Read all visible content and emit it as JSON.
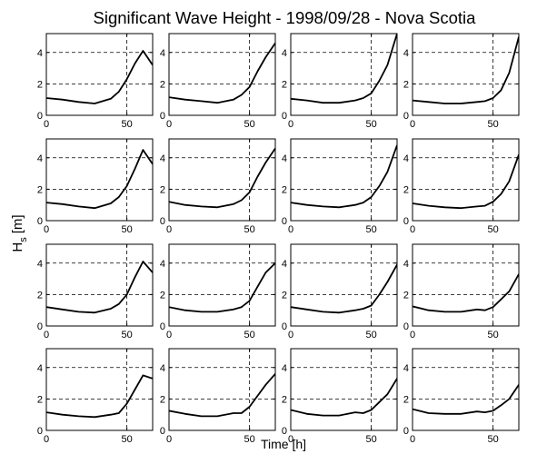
{
  "chart_data": {
    "type": "line",
    "title": "Significant Wave Height - 1998/09/28 - Nova Scotia",
    "xlabel": "Time [h]",
    "ylabel": "H",
    "ylabel_subscript": "s",
    "ylabel_unit": "[m]",
    "layout": "4x4 grid of small multiples",
    "xlim": [
      0,
      66
    ],
    "ylim": [
      0,
      5.2
    ],
    "xticks": [
      0,
      50
    ],
    "yticks": [
      0,
      2,
      4
    ],
    "grid": "dashed",
    "panels": [
      {
        "x": [
          0,
          10,
          20,
          30,
          40,
          45,
          50,
          55,
          60,
          66
        ],
        "y": [
          1.1,
          1.0,
          0.85,
          0.75,
          1.05,
          1.5,
          2.3,
          3.3,
          4.1,
          3.2
        ]
      },
      {
        "x": [
          0,
          10,
          20,
          30,
          40,
          45,
          50,
          55,
          60,
          66
        ],
        "y": [
          1.15,
          1.0,
          0.9,
          0.8,
          1.0,
          1.3,
          1.8,
          2.8,
          3.7,
          4.6
        ]
      },
      {
        "x": [
          0,
          10,
          20,
          30,
          40,
          45,
          50,
          55,
          60,
          66
        ],
        "y": [
          1.05,
          0.95,
          0.8,
          0.8,
          0.95,
          1.1,
          1.4,
          2.2,
          3.2,
          5.2
        ]
      },
      {
        "x": [
          0,
          10,
          20,
          30,
          40,
          45,
          50,
          55,
          60,
          66
        ],
        "y": [
          0.95,
          0.85,
          0.75,
          0.75,
          0.85,
          0.9,
          1.1,
          1.6,
          2.7,
          5.0
        ]
      },
      {
        "x": [
          0,
          10,
          20,
          30,
          40,
          45,
          50,
          55,
          60,
          66
        ],
        "y": [
          1.15,
          1.05,
          0.9,
          0.8,
          1.1,
          1.5,
          2.2,
          3.3,
          4.5,
          3.6
        ]
      },
      {
        "x": [
          0,
          10,
          20,
          30,
          40,
          45,
          50,
          55,
          60,
          66
        ],
        "y": [
          1.2,
          1.0,
          0.9,
          0.85,
          1.05,
          1.3,
          1.8,
          2.8,
          3.7,
          4.6
        ]
      },
      {
        "x": [
          0,
          10,
          20,
          30,
          40,
          45,
          50,
          55,
          60,
          66
        ],
        "y": [
          1.15,
          1.0,
          0.9,
          0.85,
          1.0,
          1.15,
          1.5,
          2.2,
          3.1,
          4.8
        ]
      },
      {
        "x": [
          0,
          10,
          20,
          30,
          40,
          45,
          50,
          55,
          60,
          66
        ],
        "y": [
          1.1,
          0.95,
          0.85,
          0.8,
          0.9,
          0.95,
          1.2,
          1.7,
          2.5,
          4.2
        ]
      },
      {
        "x": [
          0,
          10,
          20,
          30,
          40,
          45,
          50,
          55,
          60,
          66
        ],
        "y": [
          1.2,
          1.05,
          0.9,
          0.85,
          1.1,
          1.4,
          2.0,
          3.1,
          4.1,
          3.4
        ]
      },
      {
        "x": [
          0,
          10,
          20,
          30,
          40,
          45,
          50,
          55,
          60,
          66
        ],
        "y": [
          1.2,
          1.0,
          0.9,
          0.9,
          1.05,
          1.2,
          1.6,
          2.5,
          3.4,
          4.0
        ]
      },
      {
        "x": [
          0,
          10,
          20,
          30,
          40,
          45,
          50,
          55,
          60,
          66
        ],
        "y": [
          1.2,
          1.05,
          0.9,
          0.85,
          1.0,
          1.1,
          1.3,
          2.0,
          2.8,
          3.9
        ]
      },
      {
        "x": [
          0,
          10,
          20,
          30,
          40,
          45,
          50,
          55,
          60,
          66
        ],
        "y": [
          1.25,
          1.0,
          0.9,
          0.9,
          1.05,
          1.0,
          1.2,
          1.7,
          2.2,
          3.3
        ]
      },
      {
        "x": [
          0,
          10,
          20,
          30,
          40,
          45,
          50,
          55,
          60,
          66
        ],
        "y": [
          1.15,
          1.0,
          0.9,
          0.85,
          1.0,
          1.1,
          1.7,
          2.6,
          3.5,
          3.3
        ]
      },
      {
        "x": [
          0,
          10,
          20,
          30,
          40,
          45,
          50,
          55,
          60,
          66
        ],
        "y": [
          1.25,
          1.05,
          0.9,
          0.9,
          1.1,
          1.1,
          1.5,
          2.2,
          2.9,
          3.6
        ]
      },
      {
        "x": [
          0,
          10,
          20,
          30,
          40,
          45,
          50,
          55,
          60,
          66
        ],
        "y": [
          1.3,
          1.05,
          0.95,
          0.95,
          1.15,
          1.1,
          1.3,
          1.8,
          2.3,
          3.3
        ]
      },
      {
        "x": [
          0,
          10,
          20,
          30,
          40,
          45,
          50,
          55,
          60,
          66
        ],
        "y": [
          1.35,
          1.1,
          1.05,
          1.05,
          1.2,
          1.15,
          1.25,
          1.6,
          2.0,
          2.9
        ]
      }
    ]
  }
}
